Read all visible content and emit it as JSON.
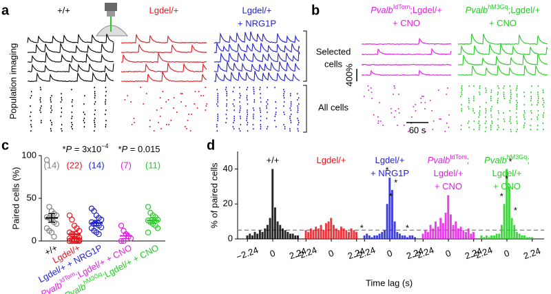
{
  "panel_letters": [
    "a",
    "b",
    "c",
    "d"
  ],
  "panel_a": {
    "groups": [
      {
        "lines": [
          "+/+"
        ],
        "color": "#000000"
      },
      {
        "lines": [
          "Lgdel/+"
        ],
        "color": "#e8141c"
      },
      {
        "lines": [
          "Lgdel/+",
          "+ NRG1P"
        ],
        "color": "#1f1fd0"
      }
    ],
    "ylabel": "Population imaging"
  },
  "panel_b": {
    "groups": [
      {
        "lines": [
          [
            [
              "Pvalb",
              "i"
            ],
            [
              "IdTom",
              "sup"
            ],
            [
              ";Lgdel/+",
              "n"
            ]
          ],
          [
            [
              "+ CNO",
              "n"
            ]
          ]
        ],
        "color": "#e01ee0"
      },
      {
        "lines": [
          [
            [
              "Pvalb",
              "i"
            ],
            [
              "hM3Gq",
              "sup"
            ],
            [
              ";Lgdel/+",
              "n"
            ]
          ],
          [
            [
              "+ CNO",
              "n"
            ]
          ]
        ],
        "color": "#22cc22"
      }
    ],
    "selected": [
      "Selected",
      "cells"
    ],
    "all": "All cells",
    "scale_y": "400%",
    "scale_x": "60 s"
  },
  "chart_data": [
    {
      "type": "strip",
      "ylabel": "Paired cells (%)",
      "ylim": [
        0,
        100
      ],
      "yticks": [
        0,
        50,
        100
      ],
      "categories": [
        [
          [
            "+/+",
            "n"
          ]
        ],
        [
          [
            "Lgdel/+",
            "n"
          ]
        ],
        [
          [
            "Lgdel/+ + NRG1P",
            "n"
          ]
        ],
        [
          [
            "Pvalb",
            "i"
          ],
          [
            "IdTom",
            "sup"
          ],
          [
            ";Lgdel/+ + CNO",
            "n"
          ]
        ],
        [
          [
            "Pvalb",
            "i"
          ],
          [
            "hM3Gq",
            "sup"
          ],
          [
            ";Lgdel/+ + CNO",
            "n"
          ]
        ]
      ],
      "colors": [
        "#7f7f7f",
        "#e8141c",
        "#1f1fd0",
        "#e01ee0",
        "#22cc22"
      ],
      "n_labels": [
        "(14)",
        "(22)",
        "(14)",
        "(7)",
        "(11)"
      ],
      "points": [
        [
          95,
          40,
          35,
          32,
          30,
          28,
          27,
          25,
          22,
          20,
          15,
          12,
          10,
          5
        ],
        [
          30,
          25,
          18,
          15,
          12,
          10,
          8,
          6,
          5,
          4,
          3,
          2,
          2,
          1,
          1,
          0,
          0,
          0,
          0,
          0,
          0,
          0
        ],
        [
          38,
          35,
          30,
          27,
          25,
          22,
          20,
          20,
          18,
          16,
          15,
          12,
          10,
          8
        ],
        [
          18,
          12,
          8,
          5,
          3,
          0,
          0
        ],
        [
          40,
          33,
          30,
          28,
          25,
          24,
          22,
          20,
          18,
          15,
          10
        ]
      ],
      "means": [
        27,
        8,
        21,
        6,
        24
      ],
      "sems": [
        5,
        3,
        3,
        3,
        3
      ],
      "annotations": [
        [
          [
            "*",
            "n"
          ],
          [
            "P",
            "i"
          ],
          [
            " = 3x10",
            "n"
          ],
          [
            "−4",
            "sup"
          ]
        ],
        [
          [
            "*",
            "n"
          ],
          [
            "P",
            "i"
          ],
          [
            " = 0.015",
            "n"
          ]
        ]
      ]
    },
    {
      "type": "histogram",
      "xlabel": "Time lag (s)",
      "ylabel": "% of paired cells",
      "ylim": [
        0,
        50
      ],
      "yticks": [
        0,
        20,
        40
      ],
      "xlim": [
        -2.5,
        2.5
      ],
      "xticks": [
        {
          "value": -2.24,
          "label": "−2.24"
        },
        0,
        2.24
      ],
      "threshold": 5,
      "star": "*",
      "x": [
        -2.24,
        -2.016,
        -1.792,
        -1.568,
        -1.344,
        -1.12,
        -0.896,
        -0.672,
        -0.448,
        -0.224,
        0,
        0.224,
        0.448,
        0.672,
        0.896,
        1.12,
        1.344,
        1.568,
        1.792,
        2.016,
        2.24
      ],
      "series": [
        {
          "name": [
            [
              [
                "+/+",
                "n"
              ]
            ]
          ],
          "color": "#000000",
          "values": [
            2,
            3,
            2,
            4,
            3,
            5,
            4,
            6,
            8,
            12,
            40,
            18,
            10,
            8,
            6,
            5,
            4,
            3,
            3,
            2,
            2
          ],
          "significant": []
        },
        {
          "name": [
            [
              [
                "Lgdel/+",
                "n"
              ]
            ]
          ],
          "color": "#e8141c",
          "values": [
            5,
            4,
            6,
            5,
            7,
            6,
            8,
            5,
            9,
            10,
            12,
            8,
            6,
            5,
            7,
            6,
            5,
            4,
            6,
            5,
            4
          ],
          "significant": []
        },
        {
          "name": [
            [
              [
                "Lgdel/+",
                "n"
              ]
            ],
            [
              [
                "+ NRG1P",
                "n"
              ]
            ]
          ],
          "color": "#1f1fd0",
          "values": [
            2,
            3,
            2,
            1,
            2,
            2,
            3,
            4,
            5,
            20,
            35,
            28,
            10,
            4,
            3,
            2,
            2,
            1,
            2,
            2,
            1
          ],
          "significant": [
            0,
            9,
            10,
            11,
            18
          ]
        },
        {
          "name": [
            [
              [
                "Pvalb",
                "i"
              ],
              [
                "IdTom",
                "sup"
              ],
              [
                ";",
                "n"
              ]
            ],
            [
              [
                "Lgdel/+",
                "n"
              ]
            ],
            [
              [
                "+ CNO",
                "n"
              ]
            ]
          ],
          "color": "#e01ee0",
          "values": [
            3,
            5,
            4,
            8,
            6,
            10,
            7,
            12,
            9,
            15,
            25,
            14,
            8,
            10,
            6,
            7,
            5,
            4,
            6,
            3,
            4
          ],
          "significant": []
        },
        {
          "name": [
            [
              [
                "Pvalb",
                "i"
              ],
              [
                "hM3Gq",
                "sup"
              ],
              [
                ";",
                "n"
              ]
            ],
            [
              [
                "Lgdel/+",
                "n"
              ]
            ],
            [
              [
                "+ CNO",
                "n"
              ]
            ]
          ],
          "color": "#22cc22",
          "values": [
            2,
            1,
            2,
            1,
            2,
            2,
            3,
            3,
            8,
            20,
            40,
            30,
            12,
            8,
            4,
            3,
            2,
            2,
            1,
            1,
            1
          ],
          "significant": [
            9,
            10,
            11,
            12
          ]
        }
      ]
    }
  ]
}
